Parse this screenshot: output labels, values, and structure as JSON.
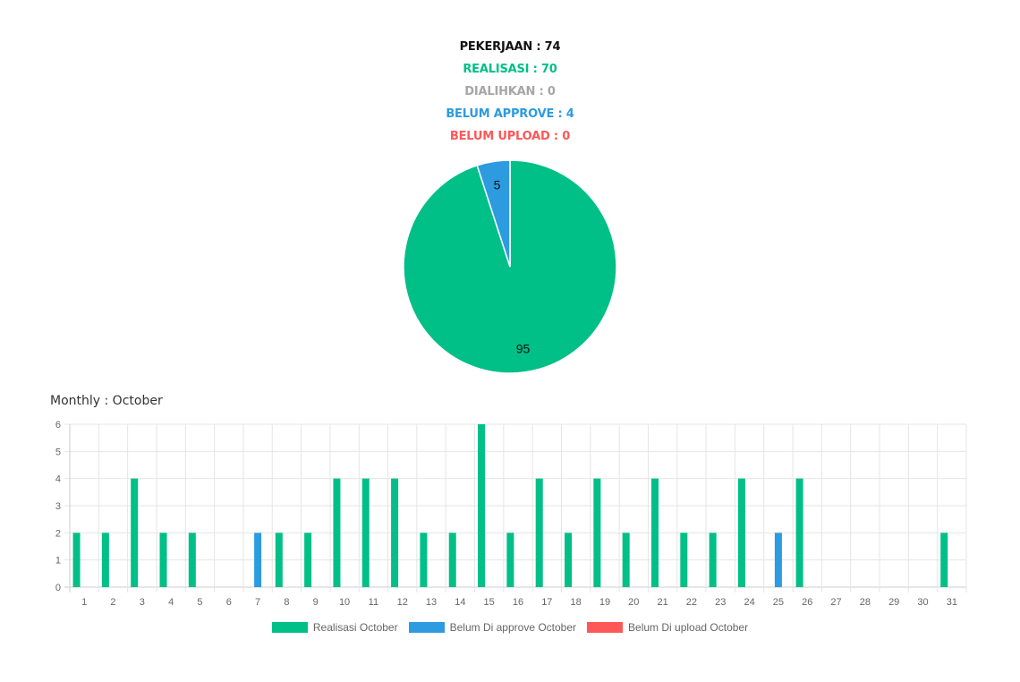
{
  "summary": {
    "pekerjaan": "PEKERJAAN : 74",
    "realisasi": "REALISASI : 70",
    "dialihkan": "DIALIHKAN : 0",
    "belum_approve": "BELUM APPROVE : 4",
    "belum_upload": "BELUM UPLOAD : 0"
  },
  "colors": {
    "black": "#111111",
    "green": "#00bf87",
    "gray": "#a6a6a6",
    "blue": "#2d9be0",
    "red": "#ff5757"
  },
  "monthly_title": "Monthly : October",
  "chart_data": [
    {
      "type": "pie",
      "values": [
        95,
        5
      ],
      "labels": [
        "95",
        "5"
      ],
      "colors": [
        "#00bf87",
        "#2d9be0"
      ]
    },
    {
      "type": "bar",
      "categories": [
        "1",
        "2",
        "3",
        "4",
        "5",
        "6",
        "7",
        "8",
        "9",
        "10",
        "11",
        "12",
        "13",
        "14",
        "15",
        "16",
        "17",
        "18",
        "19",
        "20",
        "21",
        "22",
        "23",
        "24",
        "25",
        "26",
        "27",
        "28",
        "29",
        "30",
        "31"
      ],
      "series": [
        {
          "name": "Realisasi October",
          "color": "#00bf87",
          "values": [
            2,
            2,
            4,
            2,
            2,
            0,
            0,
            2,
            2,
            4,
            4,
            4,
            2,
            2,
            6,
            2,
            4,
            2,
            4,
            2,
            4,
            2,
            2,
            4,
            0,
            4,
            0,
            0,
            0,
            0,
            2
          ]
        },
        {
          "name": "Belum Di approve October",
          "color": "#2d9be0",
          "values": [
            0,
            0,
            0,
            0,
            0,
            0,
            2,
            0,
            0,
            0,
            0,
            0,
            0,
            0,
            0,
            0,
            0,
            0,
            0,
            0,
            0,
            0,
            0,
            0,
            2,
            0,
            0,
            0,
            0,
            0,
            0
          ]
        },
        {
          "name": "Belum Di upload October",
          "color": "#ff5757",
          "values": [
            0,
            0,
            0,
            0,
            0,
            0,
            0,
            0,
            0,
            0,
            0,
            0,
            0,
            0,
            0,
            0,
            0,
            0,
            0,
            0,
            0,
            0,
            0,
            0,
            0,
            0,
            0,
            0,
            0,
            0,
            0
          ]
        }
      ],
      "yticks": [
        "0",
        "1",
        "2",
        "3",
        "4",
        "5",
        "6"
      ],
      "ylim": [
        0,
        6
      ],
      "grid": true,
      "legend": "bottom"
    }
  ]
}
